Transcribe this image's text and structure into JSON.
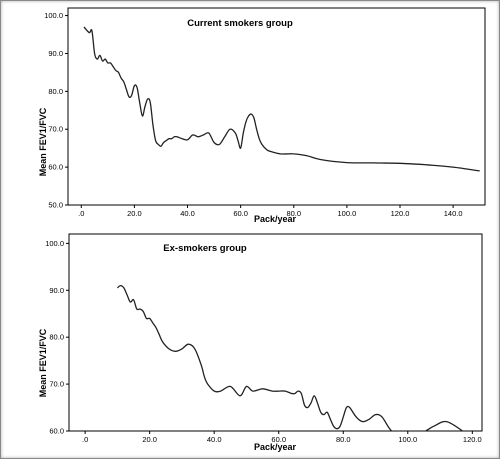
{
  "chart_data": [
    {
      "type": "line",
      "title": "Current smokers group",
      "xlabel": "Pack/year",
      "ylabel": "Mean FEV1/FVC",
      "xlim": [
        -5,
        152
      ],
      "ylim": [
        50,
        102
      ],
      "xticks": [
        0,
        20,
        40,
        60,
        80,
        100,
        120,
        140
      ],
      "xtick_labels": [
        ".0",
        "20.0",
        "40.0",
        "60.0",
        "80.0",
        "100.0",
        "120.0",
        "140.0"
      ],
      "yticks": [
        50,
        60,
        70,
        80,
        90,
        100
      ],
      "ytick_labels": [
        "50.0",
        "60.0",
        "70.0",
        "80.0",
        "90.0",
        "100.0"
      ],
      "grid": false,
      "legend": false,
      "series": [
        {
          "x": [
            1,
            3,
            4,
            5,
            6,
            7,
            8,
            9,
            10,
            11,
            12,
            13,
            14,
            15,
            16,
            17,
            18,
            19,
            20,
            21,
            22,
            23,
            24,
            25,
            26,
            27,
            28,
            29,
            30,
            31,
            32,
            33,
            34,
            35,
            36,
            38,
            40,
            42,
            44,
            46,
            48,
            50,
            52,
            54,
            56,
            58,
            59,
            60,
            61,
            62,
            63,
            64,
            65,
            66,
            67,
            68,
            70,
            72,
            75,
            78,
            80,
            85,
            90,
            100,
            110,
            120,
            130,
            140,
            150
          ],
          "y": [
            97,
            95.5,
            96,
            90,
            88.5,
            89.5,
            88,
            88.5,
            87.5,
            87.5,
            86.5,
            85.5,
            85,
            83.5,
            82.5,
            80.5,
            78.5,
            79,
            81.5,
            81,
            77,
            73.5,
            76,
            78,
            77,
            71,
            67,
            66,
            65.5,
            66.5,
            67,
            67.5,
            67.5,
            68,
            68,
            67.5,
            67.2,
            68.5,
            68,
            68.5,
            69,
            66.5,
            66,
            68,
            70,
            69,
            67,
            65,
            69,
            72,
            73.5,
            74,
            73,
            70,
            67.5,
            66,
            64.5,
            64,
            63.5,
            63.5,
            63.5,
            63,
            62,
            61.2,
            61.1,
            61,
            60.6,
            60,
            59
          ]
        }
      ]
    },
    {
      "type": "line",
      "title": "Ex-smokers group",
      "xlabel": "Pack/year",
      "ylabel": "Mean FEV1/FVC",
      "xlim": [
        -5,
        123
      ],
      "ylim": [
        60,
        102
      ],
      "xticks": [
        0,
        20,
        40,
        60,
        80,
        100,
        120
      ],
      "xtick_labels": [
        ".0",
        "20.0",
        "40.0",
        "60.0",
        "80.0",
        "100.0",
        "120.0"
      ],
      "yticks": [
        60,
        70,
        80,
        90,
        100
      ],
      "ytick_labels": [
        "60.0",
        "70.0",
        "80.0",
        "90.0",
        "100.0"
      ],
      "grid": false,
      "legend": false,
      "series": [
        {
          "x": [
            10,
            11,
            12,
            13,
            14,
            15,
            16,
            17,
            18,
            19,
            20,
            21,
            22,
            23,
            24,
            26,
            28,
            30,
            32,
            34,
            36,
            37,
            38,
            40,
            42,
            45,
            48,
            50,
            52,
            55,
            58,
            60,
            62,
            64,
            65,
            66,
            67,
            68,
            69,
            70,
            71,
            72,
            73,
            74,
            75,
            76,
            77,
            78,
            79,
            80,
            81,
            82,
            84,
            86,
            88,
            90,
            92,
            95,
            98,
            100,
            104,
            108,
            112,
            117
          ],
          "y": [
            90.5,
            91,
            90.5,
            89,
            87.5,
            88,
            86,
            86,
            85.5,
            84,
            84,
            83,
            82,
            80.5,
            79,
            77.5,
            77,
            77.5,
            78.5,
            77.5,
            74,
            71.5,
            70,
            68.5,
            68.5,
            69.5,
            67.5,
            69.5,
            68.5,
            69,
            68.5,
            68.5,
            68.5,
            68,
            68,
            68.5,
            68,
            65.5,
            65,
            66,
            67.5,
            66,
            64,
            63.5,
            64,
            62.5,
            61,
            60.5,
            61,
            63,
            65,
            65,
            63,
            62,
            62.5,
            63.5,
            63,
            60,
            60,
            59.5,
            59.5,
            61,
            62,
            60
          ]
        }
      ]
    }
  ]
}
